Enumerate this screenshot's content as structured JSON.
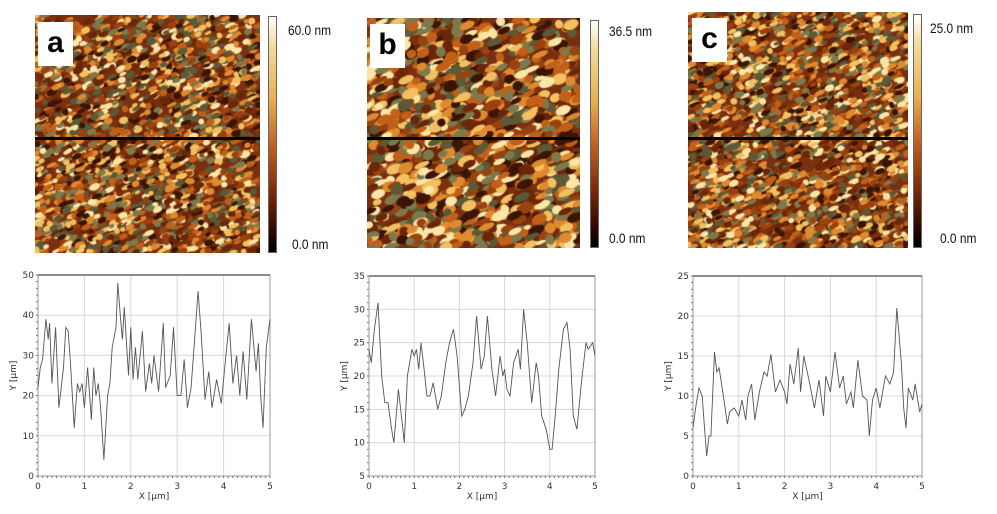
{
  "panels": [
    {
      "label": "a",
      "scale_max": "60.0 nm",
      "scale_min": "0.0 nm"
    },
    {
      "label": "b",
      "scale_max": "36.5 nm",
      "scale_min": "0.0 nm"
    },
    {
      "label": "c",
      "scale_max": "25.0 nm",
      "scale_min": "0.0 nm"
    }
  ],
  "colors": {
    "line": "#555555",
    "grid": "#d8d8d8",
    "scan_line": "#000000"
  },
  "chart_data": [
    {
      "type": "line",
      "xlabel": "X [µm]",
      "ylabel": "Y [µm]",
      "xlim": [
        0,
        5
      ],
      "ylim": [
        0,
        50
      ],
      "grid": true,
      "xticks": [
        "0",
        "1",
        "2",
        "3",
        "4",
        "5"
      ],
      "yticks": [
        "0",
        "10",
        "20",
        "30",
        "40",
        "50"
      ],
      "x": [
        0,
        0.05,
        0.1,
        0.17,
        0.22,
        0.25,
        0.3,
        0.38,
        0.45,
        0.55,
        0.6,
        0.65,
        0.7,
        0.78,
        0.85,
        0.9,
        0.95,
        1.0,
        1.07,
        1.15,
        1.2,
        1.25,
        1.3,
        1.35,
        1.42,
        1.5,
        1.55,
        1.6,
        1.68,
        1.72,
        1.78,
        1.82,
        1.86,
        1.95,
        2.0,
        2.05,
        2.1,
        2.15,
        2.25,
        2.32,
        2.4,
        2.45,
        2.5,
        2.6,
        2.7,
        2.75,
        2.85,
        2.92,
        3.0,
        3.08,
        3.15,
        3.22,
        3.3,
        3.45,
        3.52,
        3.6,
        3.68,
        3.75,
        3.85,
        3.95,
        4.05,
        4.12,
        4.2,
        4.28,
        4.35,
        4.42,
        4.5,
        4.6,
        4.7,
        4.75,
        4.8,
        4.85,
        4.92,
        5.0
      ],
      "y": [
        22,
        27,
        29,
        39,
        34,
        38,
        23,
        37,
        17,
        27,
        37,
        36,
        28,
        12,
        23,
        21,
        23,
        17,
        27,
        14,
        27,
        20,
        23,
        17,
        4,
        20,
        23,
        32,
        37,
        48,
        39,
        34,
        42,
        25,
        37,
        24,
        32,
        24,
        36,
        21,
        28,
        23,
        30,
        21,
        38,
        22,
        25,
        37,
        20,
        20,
        29,
        17,
        22,
        46,
        35,
        19,
        26,
        17,
        24,
        18,
        30,
        38,
        23,
        30,
        20,
        31,
        19,
        39,
        26,
        33,
        20,
        12,
        32,
        39
      ]
    },
    {
      "type": "line",
      "xlabel": "X [µm]",
      "ylabel": "Y [µm]",
      "xlim": [
        0,
        5
      ],
      "ylim": [
        5,
        35
      ],
      "grid": true,
      "xticks": [
        "0",
        "1",
        "2",
        "3",
        "4",
        "5"
      ],
      "yticks": [
        "5",
        "10",
        "15",
        "20",
        "25",
        "30",
        "35"
      ],
      "x": [
        0,
        0.05,
        0.12,
        0.2,
        0.28,
        0.35,
        0.42,
        0.5,
        0.55,
        0.65,
        0.75,
        0.78,
        0.85,
        0.95,
        1.0,
        1.05,
        1.1,
        1.15,
        1.22,
        1.28,
        1.35,
        1.42,
        1.52,
        1.6,
        1.7,
        1.78,
        1.87,
        1.95,
        2.05,
        2.12,
        2.2,
        2.3,
        2.38,
        2.48,
        2.55,
        2.62,
        2.72,
        2.8,
        2.9,
        2.96,
        3.0,
        3.05,
        3.12,
        3.2,
        3.3,
        3.35,
        3.42,
        3.5,
        3.6,
        3.7,
        3.75,
        3.82,
        3.92,
        4.0,
        4.05,
        4.12,
        4.2,
        4.3,
        4.38,
        4.45,
        4.52,
        4.6,
        4.7,
        4.8,
        4.85,
        4.95,
        5.0
      ],
      "y": [
        24,
        22,
        27,
        31,
        20,
        16,
        16,
        12,
        10,
        18,
        12,
        10,
        20,
        24,
        23,
        24,
        21,
        25,
        21,
        17,
        17,
        19,
        15,
        17,
        22,
        25,
        27,
        23,
        14,
        15,
        17,
        22,
        29,
        21,
        23,
        29,
        21,
        17,
        23,
        20,
        21,
        18,
        17,
        22,
        24,
        21,
        30,
        25,
        16,
        22,
        20,
        14,
        12,
        9,
        9,
        14,
        21,
        27,
        28,
        24,
        14,
        12,
        19,
        25,
        24,
        25,
        23
      ]
    },
    {
      "type": "line",
      "xlabel": "X [µm]",
      "ylabel": "Y [µm]",
      "xlim": [
        0,
        5
      ],
      "ylim": [
        0,
        25
      ],
      "grid": true,
      "xticks": [
        "0",
        "1",
        "2",
        "3",
        "4",
        "5"
      ],
      "yticks": [
        "0",
        "5",
        "10",
        "15",
        "20",
        "25"
      ],
      "x": [
        0,
        0.07,
        0.13,
        0.2,
        0.25,
        0.3,
        0.35,
        0.39,
        0.47,
        0.52,
        0.57,
        0.65,
        0.75,
        0.8,
        0.9,
        1.0,
        1.07,
        1.15,
        1.2,
        1.28,
        1.35,
        1.45,
        1.55,
        1.62,
        1.7,
        1.8,
        1.9,
        2.0,
        2.05,
        2.12,
        2.2,
        2.3,
        2.35,
        2.42,
        2.55,
        2.65,
        2.75,
        2.85,
        2.9,
        3.0,
        3.1,
        3.2,
        3.28,
        3.35,
        3.45,
        3.5,
        3.6,
        3.7,
        3.8,
        3.85,
        3.92,
        4.0,
        4.08,
        4.2,
        4.3,
        4.38,
        4.45,
        4.55,
        4.6,
        4.65,
        4.7,
        4.8,
        4.85,
        4.95,
        5.0
      ],
      "y": [
        6,
        9,
        11,
        10,
        6,
        2.5,
        5,
        5,
        15.5,
        13,
        13.5,
        10.5,
        6.5,
        8,
        8.5,
        7.5,
        9.5,
        7,
        10,
        11.5,
        7,
        10.5,
        13,
        12.5,
        15.2,
        10.5,
        12,
        10.5,
        9,
        14,
        11.5,
        16,
        10.5,
        15,
        11.5,
        8.5,
        12,
        7.5,
        12.5,
        10.5,
        15.5,
        11,
        12.5,
        9,
        10.5,
        8.5,
        14.5,
        10,
        9.5,
        5,
        9.5,
        11,
        8.5,
        12.5,
        11.5,
        13,
        21,
        14,
        8.5,
        6,
        11,
        9.5,
        11.5,
        8,
        9
      ]
    }
  ]
}
